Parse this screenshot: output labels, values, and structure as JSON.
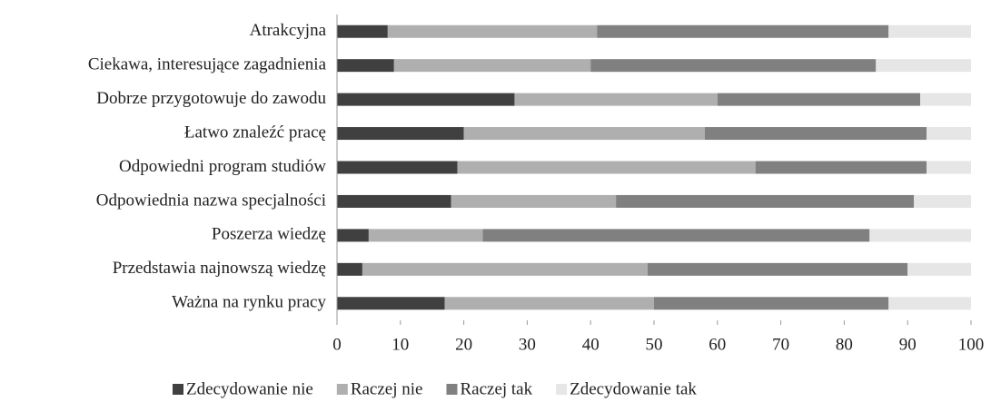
{
  "chart_data": {
    "type": "stacked_barh",
    "categories": [
      "Atrakcyjna",
      "Ciekawa, interesujące zagadnienia",
      "Dobrze przygotowuje do zawodu",
      "Łatwo znaleźć pracę",
      "Odpowiedni program studiów",
      "Odpowiednia nazwa specjalności",
      "Poszerza wiedzę",
      "Przedstawia najnowszą wiedzę",
      "Ważna na rynku pracy"
    ],
    "series": [
      {
        "name": "Zdecydowanie nie",
        "color": "#404040",
        "values": [
          8,
          9,
          28,
          20,
          19,
          18,
          5,
          4,
          17
        ]
      },
      {
        "name": "Raczej nie",
        "color": "#afafaf",
        "values": [
          33,
          31,
          32,
          38,
          47,
          26,
          18,
          45,
          33
        ]
      },
      {
        "name": "Raczej tak",
        "color": "#808080",
        "values": [
          46,
          45,
          32,
          35,
          27,
          47,
          61,
          41,
          37
        ]
      },
      {
        "name": "Zdecydowanie tak",
        "color": "#e6e6e6",
        "values": [
          13,
          15,
          8,
          7,
          7,
          9,
          16,
          10,
          13
        ]
      }
    ],
    "xlim": [
      0,
      100
    ],
    "xticks": [
      0,
      10,
      20,
      30,
      40,
      50,
      60,
      70,
      80,
      90,
      100
    ],
    "grid": false,
    "legend": "bottom"
  }
}
